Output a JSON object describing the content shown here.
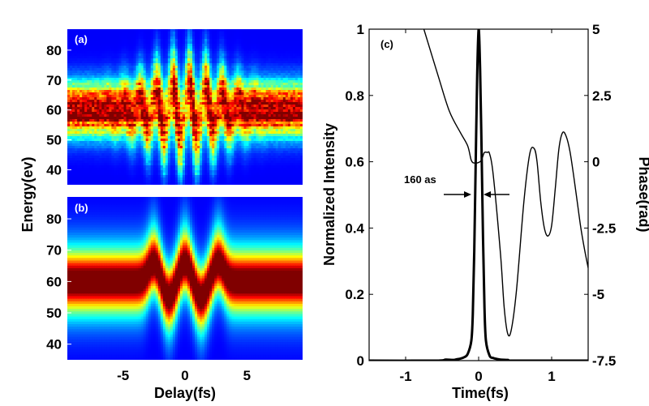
{
  "chart_data": [
    {
      "type": "heatmap",
      "panel": "(a)",
      "xlim": [
        -9.5,
        9.5
      ],
      "ylim": [
        35,
        87
      ],
      "yticks": [
        40,
        50,
        60,
        70,
        80
      ],
      "ylabel": "Energy(ev)",
      "colormap": "jet",
      "center_energy": 60,
      "fringe_region": [
        -3,
        4
      ],
      "fringe_period_fs": 1.33,
      "noisy": true
    },
    {
      "type": "heatmap",
      "panel": "(b)",
      "xlim": [
        -9.5,
        9.5
      ],
      "ylim": [
        35,
        87
      ],
      "xticks": [
        -5,
        0,
        5
      ],
      "yticks": [
        40,
        50,
        60,
        70,
        80
      ],
      "xlabel": "Delay(fs)",
      "ylabel": "Energy(ev)",
      "colormap": "jet",
      "center_energy": 60,
      "streak_peak_delays_fs": [
        -2.5,
        0,
        2.7
      ],
      "streak_trough_delays_fs": [
        -1.3,
        1.3
      ],
      "noisy": false
    },
    {
      "type": "line",
      "panel": "(c)",
      "xlabel": "Time(fs)",
      "ylabel": "Normalized Intensity",
      "y2label": "Phase(rad)",
      "xlim": [
        -1.5,
        1.5
      ],
      "ylim": [
        0,
        1
      ],
      "y2lim": [
        -7.5,
        5
      ],
      "xticks": [
        -1,
        0,
        1
      ],
      "yticks": [
        0,
        0.2,
        0.4,
        0.6,
        0.8,
        1
      ],
      "y2ticks": [
        5,
        2.5,
        0,
        -2.5,
        -5,
        -7.5
      ],
      "annotation": "160 as",
      "series": [
        {
          "axis": "left",
          "x": [
            -1.5,
            -0.6,
            -0.45,
            -0.35,
            -0.3,
            -0.25,
            -0.2,
            -0.15,
            -0.1,
            -0.08,
            -0.06,
            -0.04,
            -0.02,
            0,
            0.02,
            0.04,
            0.06,
            0.08,
            0.1,
            0.15,
            0.2,
            0.25,
            0.3,
            0.4,
            0.5,
            1.5
          ],
          "y": [
            0,
            0,
            0.003,
            0.002,
            0.004,
            0.006,
            0.01,
            0.02,
            0.06,
            0.14,
            0.33,
            0.6,
            0.86,
            1.0,
            0.88,
            0.64,
            0.37,
            0.16,
            0.06,
            0.015,
            0.008,
            0.005,
            0.003,
            0.002,
            0,
            0
          ]
        },
        {
          "axis": "right",
          "x": [
            -0.75,
            -0.55,
            -0.4,
            -0.25,
            -0.15,
            -0.1,
            -0.05,
            0.02,
            0.05,
            0.08,
            0.12,
            0.15,
            0.2,
            0.3,
            0.35,
            0.4,
            0.45,
            0.52,
            0.62,
            0.7,
            0.76,
            0.8,
            0.85,
            0.9,
            0.95,
            1.0,
            1.05,
            1.1,
            1.15,
            1.2,
            1.25,
            1.3,
            1.35,
            1.4,
            1.45,
            1.5
          ],
          "y": [
            5.0,
            3.2,
            1.9,
            1.1,
            0.6,
            0.05,
            -0.05,
            0.0,
            0.15,
            0.35,
            0.35,
            0.3,
            -0.5,
            -3.5,
            -5.5,
            -6.5,
            -6.3,
            -4.8,
            -1.5,
            0.3,
            0.5,
            0.0,
            -1.5,
            -2.5,
            -2.8,
            -2.4,
            -1.0,
            0.5,
            1.1,
            0.95,
            0.4,
            -0.5,
            -1.5,
            -2.5,
            -3.3,
            -4.0
          ]
        }
      ]
    }
  ]
}
